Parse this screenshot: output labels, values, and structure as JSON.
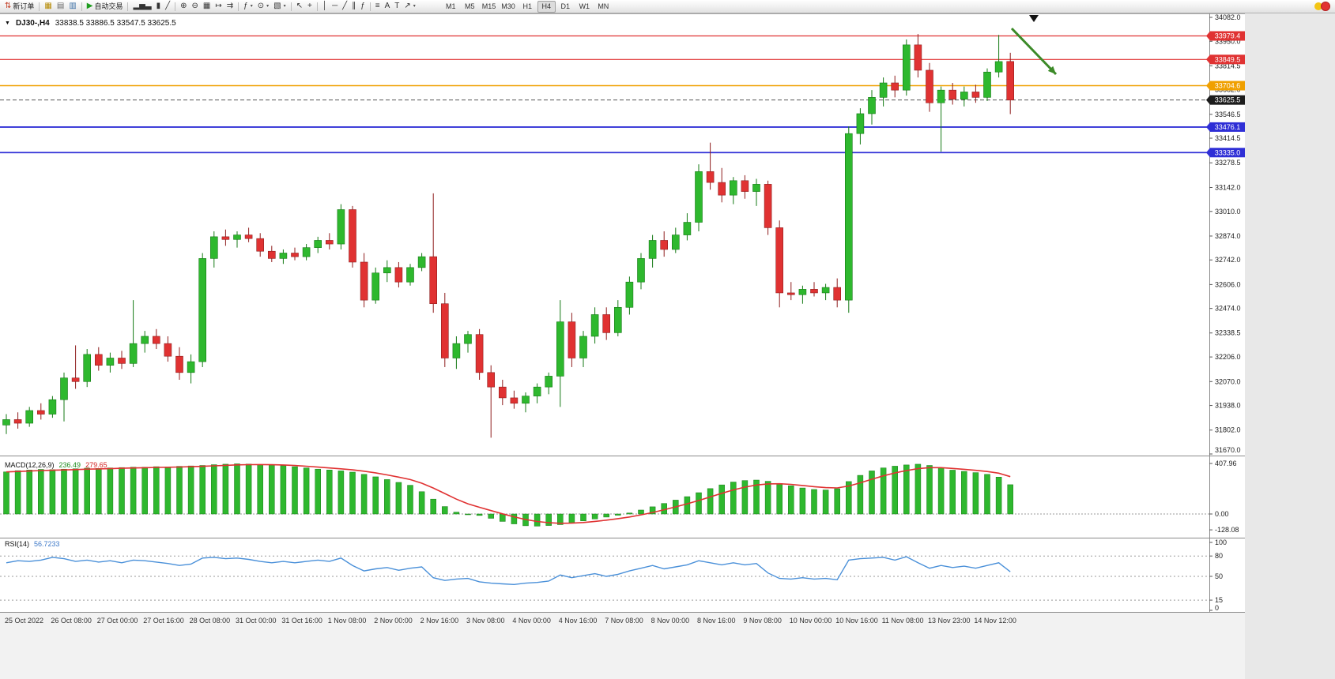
{
  "toolbar": {
    "items": [
      {
        "kind": "btn",
        "name": "new-order-button",
        "glyph": "⇅",
        "glyph_color": "#c23b22",
        "label": "新订单"
      },
      {
        "kind": "sep"
      },
      {
        "kind": "btn",
        "name": "charts-grid-button",
        "glyph": "▦",
        "glyph_color": "#b58900"
      },
      {
        "kind": "btn",
        "name": "profiles-button",
        "glyph": "▤",
        "glyph_color": "#666666"
      },
      {
        "kind": "btn",
        "name": "market-watch-button",
        "glyph": "▥",
        "glyph_color": "#3a6ea5"
      },
      {
        "kind": "sep"
      },
      {
        "kind": "btn",
        "name": "autotrading-button",
        "glyph": "▶",
        "glyph_color": "#1f9d1f",
        "label": "自动交易"
      },
      {
        "kind": "sep"
      },
      {
        "kind": "btn",
        "name": "bar-chart-button",
        "glyph": "▂▅▃"
      },
      {
        "kind": "btn",
        "name": "candlestick-chart-button",
        "glyph": "▮"
      },
      {
        "kind": "btn",
        "name": "line-chart-button",
        "glyph": "╱"
      },
      {
        "kind": "sep"
      },
      {
        "kind": "btn",
        "name": "zoom-in-button",
        "glyph": "⊕"
      },
      {
        "kind": "btn",
        "name": "zoom-out-button",
        "glyph": "⊖"
      },
      {
        "kind": "btn",
        "name": "tile-windows-button",
        "glyph": "▦"
      },
      {
        "kind": "btn",
        "name": "auto-scroll-button",
        "glyph": "↦"
      },
      {
        "kind": "btn",
        "name": "chart-shift-button",
        "glyph": "⇉"
      },
      {
        "kind": "sep"
      },
      {
        "kind": "btn",
        "name": "indicators-button",
        "glyph": "ƒ",
        "dd": true
      },
      {
        "kind": "btn",
        "name": "periods-button",
        "glyph": "⊙",
        "dd": true
      },
      {
        "kind": "btn",
        "name": "templates-button",
        "glyph": "▧",
        "dd": true
      },
      {
        "kind": "sep"
      },
      {
        "kind": "btn",
        "name": "cursor-button",
        "glyph": "↖"
      },
      {
        "kind": "btn",
        "name": "crosshair-button",
        "glyph": "+"
      },
      {
        "kind": "sep"
      },
      {
        "kind": "btn",
        "name": "vertical-line-button",
        "glyph": "│"
      },
      {
        "kind": "btn",
        "name": "horizontal-line-button",
        "glyph": "─"
      },
      {
        "kind": "btn",
        "name": "trendline-button",
        "glyph": "╱"
      },
      {
        "kind": "btn",
        "name": "channel-button",
        "glyph": "∥"
      },
      {
        "kind": "btn",
        "name": "fibonacci-button",
        "glyph": "ƒ"
      },
      {
        "kind": "sep"
      },
      {
        "kind": "btn",
        "name": "shapes-button",
        "glyph": "≡"
      },
      {
        "kind": "btn",
        "name": "text-button",
        "glyph": "A"
      },
      {
        "kind": "btn",
        "name": "text-label-button",
        "glyph": "T"
      },
      {
        "kind": "btn",
        "name": "arrows-button",
        "glyph": "↗",
        "dd": true
      }
    ],
    "timeframes": [
      "M1",
      "M5",
      "M15",
      "M30",
      "H1",
      "H4",
      "D1",
      "W1",
      "MN"
    ],
    "active_timeframe": "H4"
  },
  "chart_data": {
    "type": "candlestick",
    "symbol_timeframe": "DJ30-,H4",
    "ohlc_text": "33838.5 33886.5 33547.5 33625.5",
    "last_candle": {
      "open": 33838.5,
      "high": 33886.5,
      "low": 33547.5,
      "close": 33625.5
    },
    "price_range": {
      "top": 34082.0,
      "bottom": 31670.0
    },
    "price_axis_labels": [
      "34082.0",
      "33950.0",
      "33814.5",
      "33682.0",
      "33546.5",
      "33414.5",
      "33278.5",
      "33142.0",
      "33010.0",
      "32874.0",
      "32742.0",
      "32606.0",
      "32474.0",
      "32338.5",
      "32206.0",
      "32070.0",
      "31938.0",
      "31802.0",
      "31670.0"
    ],
    "time_labels": [
      "25 Oct 2022",
      "26 Oct 08:00",
      "27 Oct 00:00",
      "27 Oct 16:00",
      "28 Oct 08:00",
      "31 Oct 00:00",
      "31 Oct 16:00",
      "1 Nov 08:00",
      "2 Nov 00:00",
      "2 Nov 16:00",
      "3 Nov 08:00",
      "4 Nov 00:00",
      "4 Nov 16:00",
      "7 Nov 08:00",
      "8 Nov 00:00",
      "8 Nov 16:00",
      "9 Nov 08:00",
      "10 Nov 00:00",
      "10 Nov 16:00",
      "11 Nov 08:00",
      "13 Nov 23:00",
      "14 Nov 12:00"
    ],
    "bull_color": "#2eb82e",
    "bull_stroke": "#157a15",
    "bear_color": "#e03232",
    "bear_stroke": "#8f1d1d",
    "hlines": [
      {
        "price": 33979.4,
        "label": "33979.4",
        "color": "#e03232",
        "width": 1.2
      },
      {
        "price": 33849.5,
        "label": "33849.5",
        "color": "#e03232",
        "width": 1.2
      },
      {
        "price": 33704.6,
        "label": "33704.6",
        "color": "#f0a000",
        "width": 1.5
      },
      {
        "price": 33476.1,
        "label": "33476.1",
        "color": "#2f2fd6",
        "width": 1.8
      },
      {
        "price": 33335.0,
        "label": "33335.0",
        "color": "#2f2fd6",
        "width": 1.8
      }
    ],
    "current_price": {
      "price": 33625.5,
      "label": "33625.5",
      "tag_color": "#1c1c1c"
    },
    "marker_triangle_x": 1308,
    "annotation_arrow": {
      "from": [
        1280,
        19
      ],
      "to": [
        1336,
        77
      ],
      "color": "#3c8a28"
    },
    "candles_ohlc": [
      [
        31830,
        31890,
        31780,
        31860
      ],
      [
        31860,
        31900,
        31810,
        31840
      ],
      [
        31840,
        31930,
        31820,
        31910
      ],
      [
        31910,
        31950,
        31860,
        31890
      ],
      [
        31890,
        31990,
        31870,
        31970
      ],
      [
        31970,
        32120,
        31850,
        32090
      ],
      [
        32090,
        32270,
        32030,
        32070
      ],
      [
        32070,
        32250,
        32040,
        32220
      ],
      [
        32220,
        32260,
        32130,
        32160
      ],
      [
        32160,
        32230,
        32120,
        32200
      ],
      [
        32200,
        32240,
        32140,
        32170
      ],
      [
        32170,
        32520,
        32150,
        32280
      ],
      [
        32280,
        32350,
        32230,
        32320
      ],
      [
        32320,
        32360,
        32250,
        32280
      ],
      [
        32280,
        32320,
        32180,
        32210
      ],
      [
        32210,
        32260,
        32080,
        32120
      ],
      [
        32120,
        32220,
        32060,
        32180
      ],
      [
        32180,
        32780,
        32150,
        32750
      ],
      [
        32750,
        32900,
        32700,
        32870
      ],
      [
        32870,
        32910,
        32820,
        32855
      ],
      [
        32855,
        32900,
        32810,
        32880
      ],
      [
        32880,
        32920,
        32840,
        32860
      ],
      [
        32860,
        32890,
        32760,
        32790
      ],
      [
        32790,
        32820,
        32730,
        32750
      ],
      [
        32750,
        32800,
        32720,
        32780
      ],
      [
        32780,
        32810,
        32740,
        32760
      ],
      [
        32760,
        32830,
        32740,
        32810
      ],
      [
        32810,
        32870,
        32780,
        32850
      ],
      [
        32850,
        32890,
        32800,
        32830
      ],
      [
        32830,
        33050,
        32800,
        33020
      ],
      [
        33020,
        33040,
        32700,
        32730
      ],
      [
        32730,
        32780,
        32480,
        32520
      ],
      [
        32520,
        32700,
        32500,
        32670
      ],
      [
        32670,
        32740,
        32620,
        32700
      ],
      [
        32700,
        32730,
        32590,
        32620
      ],
      [
        32620,
        32720,
        32600,
        32700
      ],
      [
        32700,
        32780,
        32680,
        32760
      ],
      [
        32760,
        33110,
        32450,
        32500
      ],
      [
        32500,
        32560,
        32150,
        32200
      ],
      [
        32200,
        32320,
        32140,
        32280
      ],
      [
        32280,
        32350,
        32230,
        32330
      ],
      [
        32330,
        32360,
        32080,
        32120
      ],
      [
        32120,
        32160,
        31760,
        32040
      ],
      [
        32040,
        32080,
        31940,
        31980
      ],
      [
        31980,
        32020,
        31920,
        31950
      ],
      [
        31950,
        32010,
        31900,
        31990
      ],
      [
        31990,
        32060,
        31950,
        32040
      ],
      [
        32040,
        32120,
        32000,
        32100
      ],
      [
        32100,
        32520,
        31930,
        32400
      ],
      [
        32400,
        32450,
        32150,
        32200
      ],
      [
        32200,
        32350,
        32150,
        32320
      ],
      [
        32320,
        32480,
        32280,
        32440
      ],
      [
        32440,
        32480,
        32300,
        32340
      ],
      [
        32340,
        32520,
        32320,
        32480
      ],
      [
        32480,
        32650,
        32440,
        32620
      ],
      [
        32620,
        32780,
        32580,
        32750
      ],
      [
        32750,
        32880,
        32700,
        32850
      ],
      [
        32850,
        32900,
        32760,
        32800
      ],
      [
        32800,
        32920,
        32780,
        32880
      ],
      [
        32880,
        33000,
        32850,
        32950
      ],
      [
        32950,
        33270,
        32900,
        33230
      ],
      [
        33230,
        33390,
        33130,
        33170
      ],
      [
        33170,
        33250,
        33060,
        33100
      ],
      [
        33100,
        33200,
        33050,
        33180
      ],
      [
        33180,
        33210,
        33080,
        33120
      ],
      [
        33120,
        33190,
        33040,
        33160
      ],
      [
        33160,
        33180,
        32880,
        32920
      ],
      [
        32920,
        32960,
        32480,
        32560
      ],
      [
        32560,
        32620,
        32520,
        32550
      ],
      [
        32550,
        32600,
        32500,
        32580
      ],
      [
        32580,
        32620,
        32540,
        32560
      ],
      [
        32560,
        32610,
        32520,
        32590
      ],
      [
        32590,
        32640,
        32480,
        32520
      ],
      [
        32520,
        33480,
        32450,
        33440
      ],
      [
        33440,
        33580,
        33380,
        33550
      ],
      [
        33550,
        33680,
        33490,
        33640
      ],
      [
        33640,
        33750,
        33590,
        33720
      ],
      [
        33720,
        33760,
        33640,
        33680
      ],
      [
        33680,
        33960,
        33650,
        33930
      ],
      [
        33930,
        33990,
        33750,
        33790
      ],
      [
        33790,
        33830,
        33560,
        33610
      ],
      [
        33610,
        33700,
        33340,
        33680
      ],
      [
        33680,
        33720,
        33600,
        33630
      ],
      [
        33630,
        33700,
        33590,
        33670
      ],
      [
        33670,
        33710,
        33610,
        33640
      ],
      [
        33640,
        33800,
        33620,
        33780
      ],
      [
        33780,
        33985,
        33750,
        33838
      ],
      [
        33838.5,
        33886.5,
        33547.5,
        33625.5
      ]
    ],
    "indicators": [
      {
        "name": "MACD",
        "label": "MACD(12,26,9)",
        "value_main": "236.49",
        "value_signal": "279.65",
        "axis_labels": [
          "407.96",
          "0.00",
          "-128.08"
        ],
        "signal_color": "#e03232",
        "histogram": [
          340,
          350,
          355,
          360,
          358,
          362,
          365,
          370,
          368,
          372,
          375,
          378,
          378,
          382,
          380,
          385,
          388,
          392,
          398,
          402,
          405,
          403,
          400,
          396,
          390,
          382,
          372,
          362,
          355,
          348,
          338,
          320,
          300,
          278,
          255,
          232,
          180,
          120,
          60,
          15,
          -5,
          -12,
          -35,
          -60,
          -80,
          -95,
          -98,
          -93,
          -86,
          -72,
          -56,
          -40,
          -25,
          -10,
          8,
          32,
          58,
          85,
          112,
          140,
          172,
          205,
          235,
          258,
          270,
          274,
          264,
          246,
          228,
          210,
          198,
          194,
          204,
          262,
          312,
          348,
          372,
          386,
          396,
          402,
          392,
          374,
          354,
          344,
          334,
          320,
          298,
          236.49
        ]
      },
      {
        "name": "RSI",
        "label": "RSI(14)",
        "value_text": "56.7233",
        "axis_labels": [
          "100",
          "80",
          "50",
          "15",
          "0"
        ],
        "levels": [
          80,
          50,
          15
        ],
        "line_color": "#4a90d9",
        "values": [
          70,
          73,
          72,
          74,
          78,
          76,
          72,
          74,
          71,
          73,
          70,
          74,
          73,
          71,
          69,
          66,
          68,
          77,
          78,
          76,
          77,
          75,
          72,
          70,
          72,
          70,
          72,
          74,
          72,
          77,
          66,
          58,
          61,
          63,
          59,
          62,
          64,
          48,
          44,
          46,
          47,
          42,
          40,
          39,
          38,
          40,
          41,
          43,
          52,
          48,
          51,
          54,
          50,
          53,
          58,
          62,
          66,
          61,
          64,
          67,
          73,
          70,
          67,
          70,
          67,
          69,
          55,
          47,
          46,
          48,
          46,
          47,
          45,
          74,
          76,
          77,
          78,
          74,
          79,
          70,
          62,
          66,
          63,
          65,
          62,
          66,
          70,
          56.72
        ]
      }
    ]
  }
}
